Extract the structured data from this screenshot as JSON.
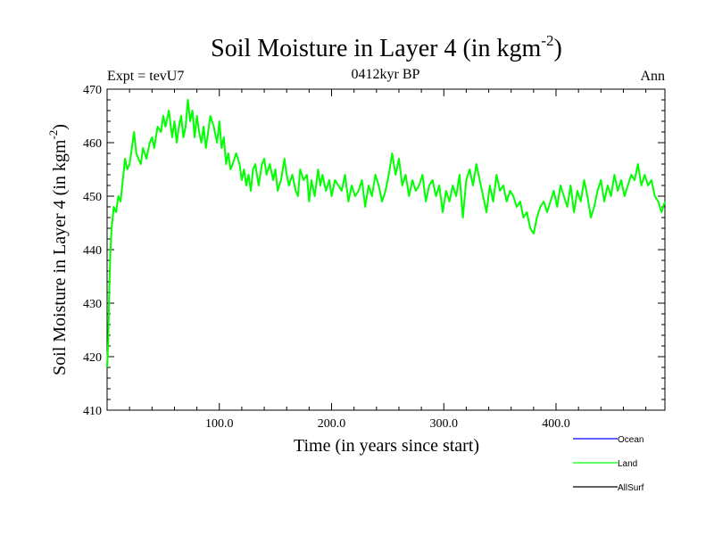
{
  "chart_data": {
    "type": "line",
    "title_main": "Soil Moisture in Layer 4 (in kgm",
    "title_sup": "-2",
    "title_close": ")",
    "subtitle_left": "Expt = tevU7",
    "subtitle_center": "0412kyr BP",
    "subtitle_right": "Ann",
    "xlabel": "Time (in years since start)",
    "ylabel_main": "Soil Moisture in Layer 4 (in kgm",
    "ylabel_sup": "-2",
    "ylabel_close": ")",
    "xlim": [
      0,
      497
    ],
    "ylim": [
      410,
      470
    ],
    "x_ticks": [
      100,
      200,
      300,
      400
    ],
    "x_tick_labels": [
      "100.0",
      "200.0",
      "300.0",
      "400.0"
    ],
    "y_ticks": [
      410,
      420,
      430,
      440,
      450,
      460,
      470
    ],
    "y_tick_labels": [
      "410",
      "420",
      "430",
      "440",
      "450",
      "460",
      "470"
    ],
    "legend": [
      {
        "name": "Ocean",
        "color": "#0000ff"
      },
      {
        "name": "Land",
        "color": "#00ff00"
      },
      {
        "name": "AllSurf",
        "color": "#000000"
      }
    ],
    "series": [
      {
        "name": "Land",
        "color": "#00ff00",
        "x": [
          0,
          1,
          2,
          3,
          4,
          5,
          6,
          8,
          10,
          12,
          14,
          16,
          18,
          20,
          22,
          24,
          26,
          28,
          30,
          32,
          35,
          38,
          40,
          42,
          45,
          48,
          50,
          52,
          55,
          58,
          60,
          62,
          64,
          66,
          68,
          70,
          72,
          74,
          76,
          78,
          80,
          82,
          84,
          86,
          88,
          90,
          92,
          95,
          98,
          100,
          102,
          104,
          106,
          108,
          110,
          112,
          115,
          118,
          120,
          122,
          124,
          126,
          128,
          130,
          132,
          135,
          138,
          140,
          142,
          145,
          148,
          150,
          152,
          155,
          158,
          160,
          162,
          165,
          168,
          170,
          172,
          175,
          178,
          180,
          182,
          185,
          188,
          190,
          192,
          195,
          198,
          200,
          203,
          206,
          209,
          212,
          215,
          218,
          221,
          224,
          227,
          230,
          233,
          236,
          239,
          242,
          245,
          248,
          251,
          254,
          257,
          260,
          263,
          266,
          269,
          272,
          275,
          278,
          281,
          284,
          287,
          290,
          293,
          296,
          299,
          302,
          305,
          308,
          311,
          314,
          317,
          320,
          323,
          326,
          329,
          332,
          335,
          338,
          341,
          344,
          347,
          350,
          353,
          356,
          359,
          362,
          365,
          368,
          371,
          374,
          377,
          380,
          383,
          386,
          389,
          392,
          395,
          398,
          401,
          404,
          407,
          410,
          413,
          416,
          419,
          422,
          425,
          428,
          431,
          434,
          437,
          440,
          443,
          446,
          449,
          452,
          455,
          458,
          461,
          464,
          467,
          470,
          473,
          476,
          479,
          482,
          485,
          488,
          491,
          494,
          497
        ],
        "values": [
          418,
          423,
          433,
          440,
          444,
          446,
          448,
          447,
          450,
          449,
          453,
          457,
          455,
          456,
          459,
          462,
          458,
          457,
          456,
          459,
          457,
          460,
          461,
          459,
          463,
          462,
          465,
          463,
          466,
          461,
          464,
          460,
          463,
          465,
          461,
          463,
          468,
          464,
          466,
          461,
          465,
          462,
          460,
          463,
          459,
          462,
          465,
          463,
          460,
          464,
          459,
          461,
          456,
          458,
          455,
          456,
          458,
          456,
          453,
          455,
          452,
          454,
          451,
          455,
          456,
          452,
          456,
          457,
          454,
          456,
          453,
          455,
          451,
          453,
          457,
          454,
          452,
          454,
          451,
          450,
          455,
          453,
          454,
          449,
          453,
          450,
          455,
          452,
          454,
          451,
          453,
          450,
          453,
          452,
          451,
          454,
          449,
          452,
          450,
          451,
          453,
          448,
          452,
          450,
          454,
          452,
          449,
          451,
          454,
          458,
          454,
          457,
          452,
          454,
          450,
          453,
          451,
          452,
          454,
          449,
          452,
          453,
          450,
          452,
          447,
          451,
          449,
          452,
          450,
          454,
          446,
          453,
          455,
          452,
          456,
          453,
          450,
          447,
          452,
          449,
          454,
          451,
          452,
          449,
          451,
          450,
          448,
          449,
          446,
          447,
          444,
          443,
          446,
          448,
          449,
          447,
          449,
          451,
          448,
          452,
          450,
          448,
          452,
          447,
          451,
          449,
          453,
          450,
          446,
          448,
          451,
          453,
          449,
          452,
          450,
          454,
          451,
          453,
          450,
          452,
          454,
          453,
          456,
          452,
          454,
          452,
          453,
          450,
          449,
          447,
          449
        ]
      }
    ]
  }
}
